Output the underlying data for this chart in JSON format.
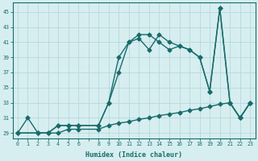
{
  "xlabel": "Humidex (Indice chaleur)",
  "bg_color": "#d6eef0",
  "grid_color": "#b8d8dc",
  "line_color": "#1a6b6b",
  "y_ticks": [
    29,
    31,
    33,
    35,
    37,
    39,
    41,
    43,
    45
  ],
  "ylim": [
    28.3,
    46.2
  ],
  "xlim": [
    -0.5,
    23.5
  ],
  "line1_x": [
    0,
    1,
    2,
    3,
    4,
    5,
    6,
    8,
    9,
    10,
    11,
    12,
    13,
    14,
    15,
    16,
    17,
    18,
    19,
    20,
    21,
    22,
    23
  ],
  "line1_y": [
    29,
    31,
    29,
    29,
    30,
    30,
    30,
    30,
    33,
    39,
    41,
    41.5,
    40,
    42,
    41,
    40.5,
    40,
    39,
    34.5,
    45.5,
    33,
    31,
    33
  ],
  "line2_x": [
    0,
    2,
    3,
    4,
    5,
    6,
    8,
    9,
    10,
    11,
    12,
    13,
    14,
    15,
    16,
    17,
    18,
    19,
    20,
    21,
    22,
    23
  ],
  "line2_y": [
    29,
    29,
    29,
    30,
    30,
    30,
    30,
    33,
    37,
    41,
    42,
    42,
    41,
    40,
    40.5,
    40,
    39,
    34.5,
    45.5,
    33,
    31,
    33
  ],
  "line3_x": [
    0,
    2,
    3,
    4,
    5,
    6,
    8,
    9,
    10,
    11,
    12,
    13,
    14,
    15,
    16,
    17,
    18,
    19,
    20,
    21,
    22,
    23
  ],
  "line3_y": [
    29,
    29,
    29,
    29,
    29.5,
    29.5,
    29.5,
    30,
    30.3,
    30.5,
    30.8,
    31.0,
    31.3,
    31.5,
    31.7,
    32.0,
    32.2,
    32.5,
    32.8,
    33.0,
    31.0,
    33.0
  ],
  "xtick_labels": [
    "0",
    "1",
    "2",
    "3",
    "4",
    "5",
    "6",
    "",
    "8",
    "9",
    "10",
    "11",
    "12",
    "13",
    "14",
    "15",
    "16",
    "17",
    "18",
    "19",
    "20",
    "21",
    "22",
    "23"
  ]
}
